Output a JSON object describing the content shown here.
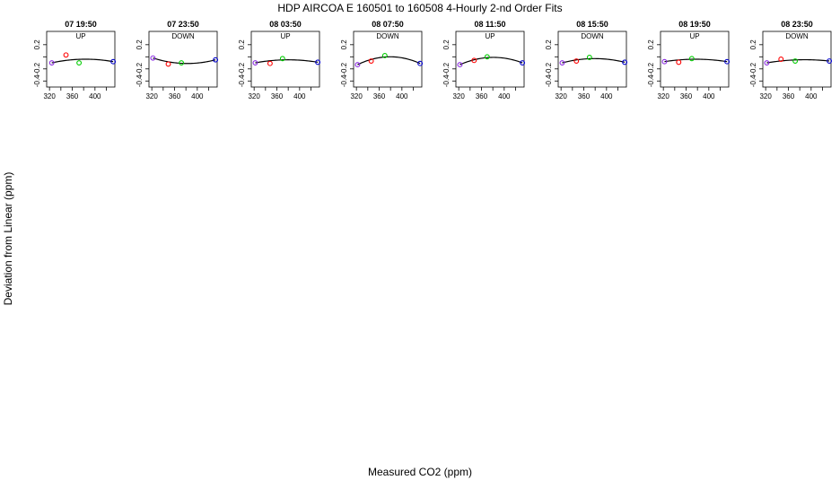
{
  "title": "HDP   AIRCOA E   160501 to 160508   4-Hourly 2-nd Order Fits",
  "xlabel": "Measured CO2 (ppm)",
  "ylabel": "Deviation from Linear (ppm)",
  "colors": {
    "lowest": "#8a2be2",
    "low": "#ff0000",
    "high": "#00cc00",
    "highest": "#0000cc",
    "curve": "#000000"
  },
  "chart_data": [
    {
      "type": "scatter",
      "title": "07 19:50",
      "subtitle": "UP",
      "x_ticks": [
        "320",
        "360",
        "400"
      ],
      "y_ticks": [
        "0.2",
        "-0.2",
        "-0.4"
      ],
      "xlim": [
        315,
        435
      ],
      "ylim": [
        -0.5,
        0.42
      ],
      "points": [
        [
          324,
          -0.1
        ],
        [
          349,
          0.03
        ],
        [
          372,
          -0.1
        ],
        [
          432,
          -0.08
        ]
      ],
      "curve_y": [
        -0.1,
        -0.04,
        -0.04,
        -0.08
      ]
    },
    {
      "type": "scatter",
      "title": "07 23:50",
      "subtitle": "DOWN",
      "x_ticks": [
        "320",
        "360",
        "400"
      ],
      "y_ticks": [
        "0.2",
        "-0.2",
        "-0.4"
      ],
      "xlim": [
        315,
        435
      ],
      "ylim": [
        -0.5,
        0.42
      ],
      "points": [
        [
          322,
          -0.02
        ],
        [
          349,
          -0.12
        ],
        [
          372,
          -0.1
        ],
        [
          432,
          -0.05
        ]
      ],
      "curve_y": [
        -0.02,
        -0.11,
        -0.11,
        -0.05
      ]
    },
    {
      "type": "scatter",
      "title": "08 03:50",
      "subtitle": "UP",
      "x_ticks": [
        "320",
        "360",
        "400"
      ],
      "y_ticks": [
        "0.2",
        "-0.2",
        "-0.4"
      ],
      "xlim": [
        315,
        435
      ],
      "ylim": [
        -0.5,
        0.42
      ],
      "points": [
        [
          322,
          -0.1
        ],
        [
          348,
          -0.11
        ],
        [
          370,
          -0.03
        ],
        [
          432,
          -0.09
        ]
      ],
      "curve_y": [
        -0.1,
        -0.05,
        -0.05,
        -0.09
      ]
    },
    {
      "type": "scatter",
      "title": "08 07:50",
      "subtitle": "DOWN",
      "x_ticks": [
        "320",
        "360",
        "400"
      ],
      "y_ticks": [
        "0.2",
        "-0.2",
        "-0.4"
      ],
      "xlim": [
        315,
        435
      ],
      "ylim": [
        -0.5,
        0.42
      ],
      "points": [
        [
          322,
          -0.13
        ],
        [
          346,
          -0.07
        ],
        [
          370,
          0.02
        ],
        [
          432,
          -0.11
        ]
      ],
      "curve_y": [
        -0.13,
        0.0,
        0.0,
        -0.11
      ]
    },
    {
      "type": "scatter",
      "title": "08 11:50",
      "subtitle": "UP",
      "x_ticks": [
        "320",
        "360",
        "400"
      ],
      "y_ticks": [
        "0.2",
        "-0.2",
        "-0.4"
      ],
      "xlim": [
        315,
        435
      ],
      "ylim": [
        -0.5,
        0.42
      ],
      "points": [
        [
          322,
          -0.13
        ],
        [
          347,
          -0.06
        ],
        [
          370,
          0.0
        ],
        [
          432,
          -0.1
        ]
      ],
      "curve_y": [
        -0.13,
        -0.01,
        -0.01,
        -0.1
      ]
    },
    {
      "type": "scatter",
      "title": "08 15:50",
      "subtitle": "DOWN",
      "x_ticks": [
        "320",
        "360",
        "400"
      ],
      "y_ticks": [
        "0.2",
        "-0.2",
        "-0.4"
      ],
      "xlim": [
        315,
        435
      ],
      "ylim": [
        -0.5,
        0.42
      ],
      "points": [
        [
          322,
          -0.1
        ],
        [
          347,
          -0.07
        ],
        [
          370,
          -0.01
        ],
        [
          432,
          -0.09
        ]
      ],
      "curve_y": [
        -0.1,
        -0.03,
        -0.03,
        -0.09
      ]
    },
    {
      "type": "scatter",
      "title": "08 19:50",
      "subtitle": "UP",
      "x_ticks": [
        "320",
        "360",
        "400"
      ],
      "y_ticks": [
        "0.2",
        "-0.2",
        "-0.4"
      ],
      "xlim": [
        315,
        435
      ],
      "ylim": [
        -0.5,
        0.42
      ],
      "points": [
        [
          322,
          -0.08
        ],
        [
          347,
          -0.09
        ],
        [
          370,
          -0.03
        ],
        [
          432,
          -0.08
        ]
      ],
      "curve_y": [
        -0.08,
        -0.04,
        -0.04,
        -0.08
      ]
    },
    {
      "type": "scatter",
      "title": "08 23:50",
      "subtitle": "DOWN",
      "x_ticks": [
        "320",
        "360",
        "400"
      ],
      "y_ticks": [
        "0.2",
        "-0.2",
        "-0.4"
      ],
      "xlim": [
        315,
        435
      ],
      "ylim": [
        -0.5,
        0.42
      ],
      "points": [
        [
          322,
          -0.1
        ],
        [
          347,
          -0.04
        ],
        [
          372,
          -0.07
        ],
        [
          432,
          -0.07
        ]
      ],
      "curve_y": [
        -0.1,
        -0.05,
        -0.05,
        -0.07
      ]
    }
  ]
}
